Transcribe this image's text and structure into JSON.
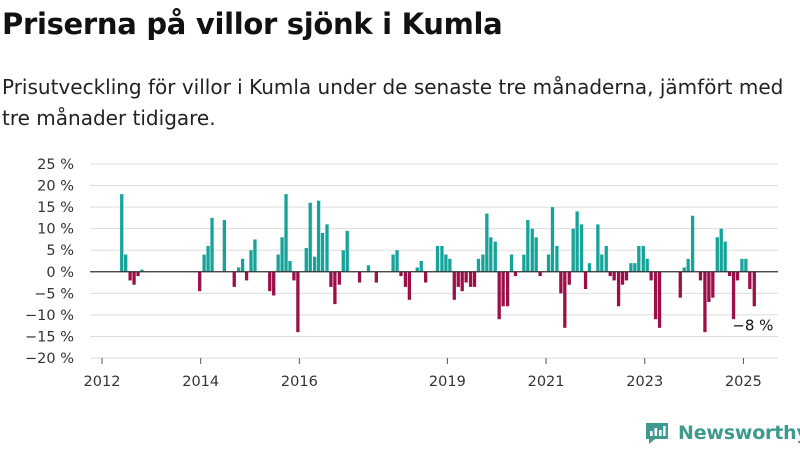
{
  "header": {
    "title": "Priserna på villor sjönk i Kumla",
    "subtitle": "Prisutveckling för villor i Kumla under de senaste tre månaderna, jämfört med tre månader tidigare."
  },
  "brand": {
    "name": "Newsworthy",
    "icon": "newsworthy-logo-icon"
  },
  "colors": {
    "positive": "#16a39a",
    "negative": "#9c0f48",
    "grid": "#dddddd",
    "axis": "#333333"
  },
  "chart_data": {
    "type": "bar",
    "title": "Priserna på villor sjönk i Kumla",
    "subtitle": "Prisutveckling för villor i Kumla under de senaste tre månaderna, jämfört med tre månader tidigare.",
    "ylim": [
      -20,
      25
    ],
    "yticks": [
      -20,
      -15,
      -10,
      -5,
      0,
      5,
      10,
      15,
      20,
      25
    ],
    "ytick_labels": [
      "−20 %",
      "−15 %",
      "−10 %",
      "−5 %",
      "0 %",
      "5 %",
      "10 %",
      "15 %",
      "20 %",
      "25 %"
    ],
    "x_range": [
      2012.0,
      2025.6
    ],
    "xtick_labels": [
      "2012",
      "2014",
      "2016",
      "2019",
      "2021",
      "2023",
      "2025"
    ],
    "grid": true,
    "annotation": {
      "text": "−8 %",
      "target": "last bar"
    },
    "series": [
      {
        "values": [
          [
            2012.4,
            18
          ],
          [
            2012.48,
            4
          ],
          [
            2012.57,
            -2
          ],
          [
            2012.65,
            -3
          ],
          [
            2012.73,
            -1
          ],
          [
            2012.81,
            0.5
          ],
          [
            2013.98,
            -4.5
          ],
          [
            2014.07,
            4
          ],
          [
            2014.15,
            6
          ],
          [
            2014.23,
            12.5
          ],
          [
            2014.48,
            12
          ],
          [
            2014.68,
            -3.5
          ],
          [
            2014.77,
            1
          ],
          [
            2014.85,
            3
          ],
          [
            2014.93,
            -2
          ],
          [
            2015.02,
            5
          ],
          [
            2015.1,
            7.5
          ],
          [
            2015.4,
            -4.5
          ],
          [
            2015.48,
            -5.5
          ],
          [
            2015.57,
            4
          ],
          [
            2015.65,
            8
          ],
          [
            2015.73,
            18
          ],
          [
            2015.81,
            2.5
          ],
          [
            2015.89,
            -2
          ],
          [
            2015.97,
            -14
          ],
          [
            2016.14,
            5.5
          ],
          [
            2016.22,
            16
          ],
          [
            2016.31,
            3.5
          ],
          [
            2016.39,
            16.5
          ],
          [
            2016.47,
            9
          ],
          [
            2016.56,
            11
          ],
          [
            2016.64,
            -3.5
          ],
          [
            2016.72,
            -7.5
          ],
          [
            2016.81,
            -3
          ],
          [
            2016.89,
            5
          ],
          [
            2016.97,
            9.5
          ],
          [
            2017.22,
            -2.5
          ],
          [
            2017.4,
            1.5
          ],
          [
            2017.56,
            -2.5
          ],
          [
            2017.9,
            4
          ],
          [
            2017.98,
            5
          ],
          [
            2018.06,
            -1
          ],
          [
            2018.15,
            -3.5
          ],
          [
            2018.23,
            -6.5
          ],
          [
            2018.39,
            1
          ],
          [
            2018.47,
            2.5
          ],
          [
            2018.56,
            -2.5
          ],
          [
            2018.8,
            6
          ],
          [
            2018.89,
            6
          ],
          [
            2018.97,
            4
          ],
          [
            2019.05,
            3
          ],
          [
            2019.14,
            -6.5
          ],
          [
            2019.22,
            -3.5
          ],
          [
            2019.3,
            -4.5
          ],
          [
            2019.38,
            -2.5
          ],
          [
            2019.47,
            -3.5
          ],
          [
            2019.55,
            -3.5
          ],
          [
            2019.63,
            3
          ],
          [
            2019.72,
            4
          ],
          [
            2019.8,
            13.5
          ],
          [
            2019.88,
            8
          ],
          [
            2019.97,
            7
          ],
          [
            2020.05,
            -11
          ],
          [
            2020.13,
            -8
          ],
          [
            2020.22,
            -8
          ],
          [
            2020.3,
            4
          ],
          [
            2020.38,
            -1
          ],
          [
            2020.55,
            4
          ],
          [
            2020.63,
            12
          ],
          [
            2020.72,
            10
          ],
          [
            2020.8,
            8
          ],
          [
            2020.88,
            -1
          ],
          [
            2021.05,
            4
          ],
          [
            2021.13,
            15
          ],
          [
            2021.22,
            6
          ],
          [
            2021.3,
            -5
          ],
          [
            2021.38,
            -13
          ],
          [
            2021.47,
            -3
          ],
          [
            2021.55,
            10
          ],
          [
            2021.63,
            14
          ],
          [
            2021.72,
            11
          ],
          [
            2021.8,
            -4
          ],
          [
            2021.88,
            2
          ],
          [
            2022.05,
            11
          ],
          [
            2022.13,
            4
          ],
          [
            2022.22,
            6
          ],
          [
            2022.3,
            -1
          ],
          [
            2022.38,
            -2
          ],
          [
            2022.47,
            -8
          ],
          [
            2022.55,
            -3
          ],
          [
            2022.63,
            -2
          ],
          [
            2022.72,
            2
          ],
          [
            2022.8,
            2
          ],
          [
            2022.88,
            6
          ],
          [
            2022.97,
            6
          ],
          [
            2023.05,
            3
          ],
          [
            2023.13,
            -2
          ],
          [
            2023.22,
            -11
          ],
          [
            2023.3,
            -13
          ],
          [
            2023.72,
            -6
          ],
          [
            2023.8,
            1
          ],
          [
            2023.88,
            3
          ],
          [
            2023.97,
            13
          ],
          [
            2024.13,
            -2
          ],
          [
            2024.22,
            -14
          ],
          [
            2024.3,
            -7
          ],
          [
            2024.38,
            -6
          ],
          [
            2024.47,
            8
          ],
          [
            2024.55,
            10
          ],
          [
            2024.63,
            7
          ],
          [
            2024.72,
            -1
          ],
          [
            2024.8,
            -11
          ],
          [
            2024.88,
            -2
          ],
          [
            2024.97,
            3
          ],
          [
            2025.05,
            3
          ],
          [
            2025.13,
            -4
          ],
          [
            2025.22,
            -8
          ]
        ]
      }
    ]
  }
}
